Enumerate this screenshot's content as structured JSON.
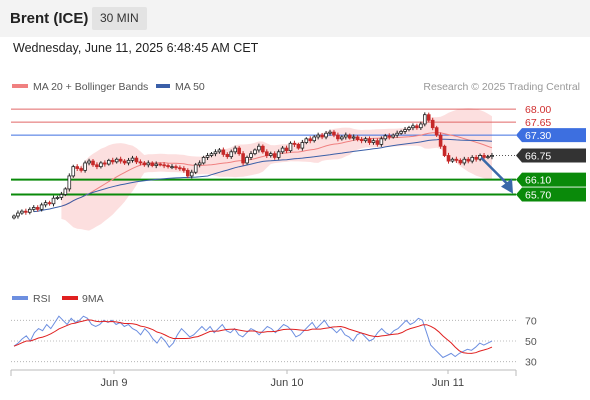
{
  "header": {
    "title": "Brent (ICE)",
    "timeframe": "30 MIN",
    "datetime": "Wednesday, June 11, 2025 6:48:45 AM CET"
  },
  "legend": {
    "ma20": "MA 20 + Bollinger Bands",
    "ma50": "MA 50",
    "credit": "Research © 2025 Trading Central",
    "rsi": "RSI",
    "rsi_ma": "9MA"
  },
  "colors": {
    "ma20": "#f08080",
    "ma50": "#3a5fa8",
    "band_fill": "#fbd4d4",
    "resistance": "#e06666",
    "pivot": "#3d6fe0",
    "support": "#0a8a0a",
    "last_tag": "#333333",
    "arrow": "#3a68a8",
    "candle_up": "#222222",
    "candle_down": "#c62828",
    "rsi": "#6d8fe0",
    "rsi_ma": "#e02020"
  },
  "chart_data": {
    "type": "candlestick",
    "ylim": [
      63.8,
      68.3
    ],
    "x_ticks": [
      "Jun 9",
      "Jun 10",
      "Jun 11"
    ],
    "levels": [
      {
        "name": "resistance2",
        "value": 68.0,
        "label": "68.00"
      },
      {
        "name": "resistance1",
        "value": 67.65,
        "label": "67.65"
      },
      {
        "name": "pivot",
        "value": 67.3,
        "label": "67.30"
      },
      {
        "name": "last",
        "value": 66.75,
        "label": "66.75"
      },
      {
        "name": "support1",
        "value": 66.1,
        "label": "66.10"
      },
      {
        "name": "support2",
        "value": 65.7,
        "label": "65.70"
      }
    ],
    "forecast_arrow": {
      "from": 66.75,
      "to": 65.75
    },
    "closes": [
      65.12,
      65.2,
      65.25,
      65.22,
      65.3,
      65.35,
      65.3,
      65.42,
      65.48,
      65.45,
      65.6,
      65.62,
      65.7,
      65.85,
      66.2,
      66.45,
      66.4,
      66.35,
      66.55,
      66.6,
      66.5,
      66.45,
      66.55,
      66.52,
      66.62,
      66.58,
      66.65,
      66.6,
      66.55,
      66.62,
      66.68,
      66.58,
      66.55,
      66.5,
      66.55,
      66.48,
      66.52,
      66.5,
      66.48,
      66.45,
      66.45,
      66.42,
      66.4,
      66.35,
      66.2,
      66.3,
      66.5,
      66.55,
      66.7,
      66.75,
      66.8,
      66.85,
      66.9,
      66.78,
      66.72,
      66.85,
      66.95,
      66.8,
      66.55,
      66.7,
      66.8,
      66.9,
      67.0,
      66.85,
      66.75,
      66.8,
      66.7,
      66.85,
      66.95,
      66.88,
      67.08,
      67.05,
      66.95,
      67.1,
      67.2,
      67.15,
      67.25,
      67.3,
      67.25,
      67.35,
      67.38,
      67.3,
      67.2,
      67.25,
      67.3,
      67.22,
      67.25,
      67.18,
      67.15,
      67.2,
      67.1,
      67.15,
      67.05,
      67.2,
      67.28,
      67.25,
      67.3,
      67.35,
      67.4,
      67.45,
      67.5,
      67.55,
      67.5,
      67.6,
      67.85,
      67.7,
      67.5,
      67.3,
      67.0,
      66.75,
      66.6,
      66.65,
      66.62,
      66.55,
      66.65,
      66.6,
      66.7,
      66.65,
      66.75,
      66.7,
      66.72,
      66.75
    ],
    "rsi": {
      "ylim": [
        20,
        80
      ],
      "levels": [
        70,
        50,
        30
      ],
      "values": [
        45,
        48,
        52,
        55,
        50,
        58,
        62,
        60,
        66,
        62,
        68,
        74,
        70,
        66,
        72,
        68,
        70,
        74,
        72,
        66,
        64,
        66,
        70,
        68,
        70,
        66,
        68,
        64,
        66,
        62,
        60,
        56,
        62,
        58,
        52,
        48,
        54,
        50,
        44,
        48,
        56,
        62,
        58,
        54,
        56,
        60,
        64,
        60,
        64,
        58,
        62,
        66,
        60,
        58,
        62,
        56,
        54,
        58,
        62,
        60,
        56,
        60,
        64,
        62,
        58,
        62,
        66,
        64,
        60,
        54,
        56,
        60,
        64,
        68,
        62,
        66,
        70,
        64,
        62,
        58,
        62,
        56,
        54,
        50,
        56,
        58,
        54,
        50,
        52,
        58,
        62,
        58,
        56,
        60,
        62,
        66,
        70,
        66,
        68,
        72,
        70,
        58,
        46,
        42,
        38,
        34,
        36,
        38,
        35,
        38,
        40,
        42,
        41,
        44,
        48,
        46,
        48,
        50
      ]
    }
  }
}
